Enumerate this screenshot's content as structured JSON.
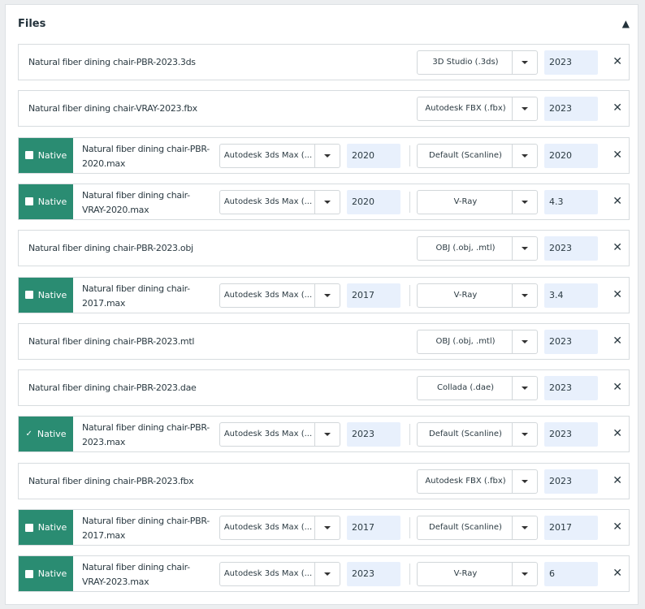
{
  "files": {
    "title": "Files",
    "collapse_icon": "chevron-up-icon",
    "accent_color": "#2a8c72",
    "native_label": "Native",
    "rows": [
      {
        "name": "Natural fiber dining chair-PBR-2023.3ds",
        "format": "3D Studio (.3ds)",
        "version": "2023"
      },
      {
        "name": "Natural fiber dining chair-VRAY-2023.fbx",
        "format": "Autodesk FBX (.fbx)",
        "version": "2023"
      },
      {
        "name": "Natural fiber dining chair-PBR-2020.max",
        "native": true,
        "checked": false,
        "app": "Autodesk 3ds Max (...",
        "app_version": "2020",
        "format": "Default (Scanline)",
        "version": "2020"
      },
      {
        "name": "Natural fiber dining chair-VRAY-2020.max",
        "native": true,
        "checked": false,
        "app": "Autodesk 3ds Max (...",
        "app_version": "2020",
        "format": "V-Ray",
        "version": "4.3"
      },
      {
        "name": "Natural fiber dining chair-PBR-2023.obj",
        "format": "OBJ (.obj, .mtl)",
        "version": "2023"
      },
      {
        "name": "Natural fiber dining chair-2017.max",
        "native": true,
        "checked": false,
        "app": "Autodesk 3ds Max (...",
        "app_version": "2017",
        "format": "V-Ray",
        "version": "3.4"
      },
      {
        "name": "Natural fiber dining chair-PBR-2023.mtl",
        "format": "OBJ (.obj, .mtl)",
        "version": "2023"
      },
      {
        "name": "Natural fiber dining chair-PBR-2023.dae",
        "format": "Collada (.dae)",
        "version": "2023"
      },
      {
        "name": "Natural fiber dining chair-PBR-2023.max",
        "native": true,
        "checked": true,
        "app": "Autodesk 3ds Max (...",
        "app_version": "2023",
        "format": "Default (Scanline)",
        "version": "2023"
      },
      {
        "name": "Natural fiber dining chair-PBR-2023.fbx",
        "format": "Autodesk FBX (.fbx)",
        "version": "2023"
      },
      {
        "name": "Natural fiber dining chair-PBR-2017.max",
        "native": true,
        "checked": false,
        "app": "Autodesk 3ds Max (...",
        "app_version": "2017",
        "format": "Default (Scanline)",
        "version": "2017"
      },
      {
        "name": "Natural fiber dining chair-VRAY-2023.max",
        "native": true,
        "checked": false,
        "app": "Autodesk 3ds Max (...",
        "app_version": "2023",
        "format": "V-Ray",
        "version": "6"
      }
    ]
  }
}
